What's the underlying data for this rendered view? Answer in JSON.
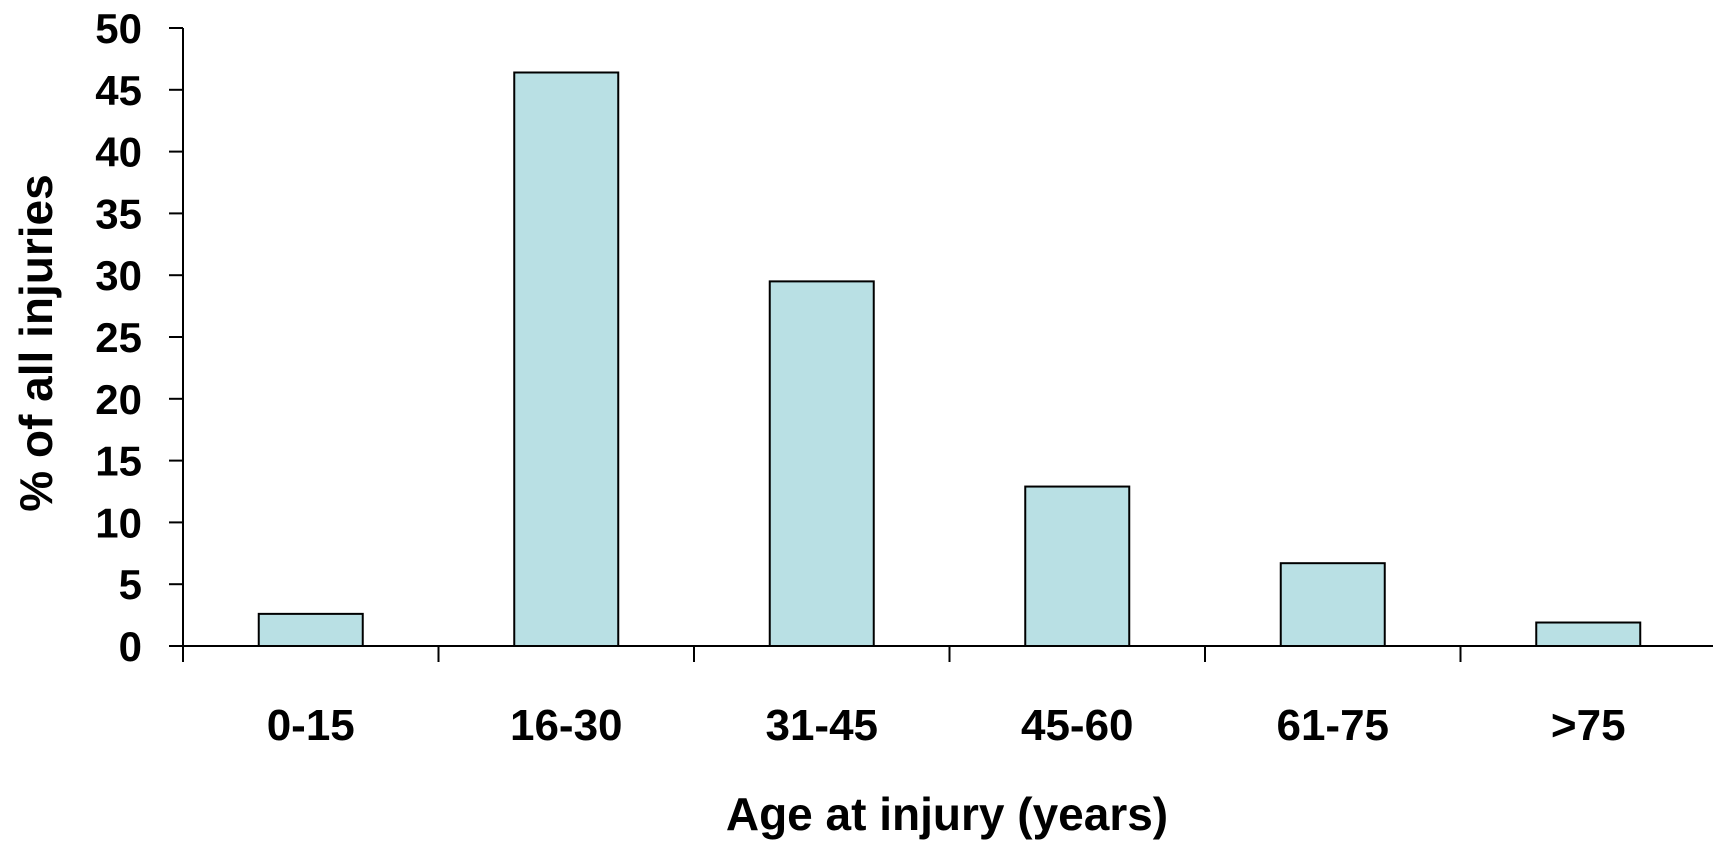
{
  "chart_data": {
    "type": "bar",
    "categories": [
      "0-15",
      "16-30",
      "31-45",
      "45-60",
      "61-75",
      ">75"
    ],
    "values": [
      2.6,
      46.4,
      29.5,
      12.9,
      6.7,
      1.9
    ],
    "xlabel": "Age at injury (years)",
    "ylabel": "% of all injuries",
    "ylim": [
      0,
      50
    ],
    "yticks": [
      0,
      5,
      10,
      15,
      20,
      25,
      30,
      35,
      40,
      45,
      50
    ],
    "bar_color": "#b9e0e4",
    "grid": false,
    "legend": "none"
  }
}
